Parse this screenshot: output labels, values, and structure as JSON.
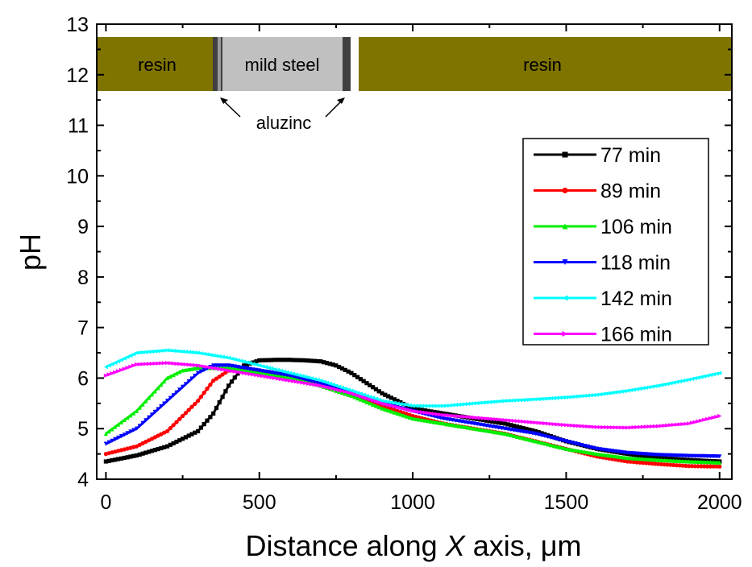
{
  "chart_data": {
    "type": "line",
    "xlabel_prefix": "Distance along ",
    "xlabel_var": "X",
    "xlabel_suffix": " axis, μm",
    "ylabel": "pH",
    "xlim": [
      -30,
      2040
    ],
    "ylim": [
      4,
      13
    ],
    "xticks": [
      0,
      500,
      1000,
      1500,
      2000
    ],
    "yticks": [
      4,
      5,
      6,
      7,
      8,
      9,
      10,
      11,
      12,
      13
    ],
    "legend_position": "right",
    "series": [
      {
        "name": "77 min",
        "color": "#000000",
        "marker": "square",
        "x": [
          0,
          100,
          200,
          300,
          350,
          400,
          450,
          500,
          550,
          600,
          650,
          700,
          750,
          800,
          850,
          900,
          1000,
          1100,
          1200,
          1300,
          1400,
          1500,
          1600,
          1700,
          1800,
          1900,
          2000
        ],
        "y": [
          4.35,
          4.47,
          4.65,
          4.95,
          5.3,
          5.85,
          6.25,
          6.35,
          6.36,
          6.36,
          6.35,
          6.33,
          6.25,
          6.1,
          5.9,
          5.7,
          5.4,
          5.3,
          5.2,
          5.1,
          4.95,
          4.75,
          4.6,
          4.5,
          4.42,
          4.38,
          4.35
        ]
      },
      {
        "name": "89 min",
        "color": "#ff0000",
        "marker": "circle",
        "x": [
          0,
          100,
          200,
          300,
          350,
          400,
          450,
          500,
          600,
          700,
          800,
          900,
          1000,
          1100,
          1200,
          1300,
          1400,
          1500,
          1600,
          1700,
          1800,
          1900,
          2000
        ],
        "y": [
          4.5,
          4.65,
          4.95,
          5.55,
          5.95,
          6.15,
          6.17,
          6.15,
          6.0,
          5.85,
          5.65,
          5.45,
          5.25,
          5.1,
          5.0,
          4.9,
          4.75,
          4.6,
          4.45,
          4.35,
          4.3,
          4.26,
          4.25
        ]
      },
      {
        "name": "106 min",
        "color": "#00ee00",
        "marker": "triangle-up",
        "x": [
          0,
          100,
          200,
          250,
          300,
          400,
          500,
          600,
          700,
          800,
          900,
          1000,
          1100,
          1200,
          1300,
          1400,
          1500,
          1600,
          1700,
          1800,
          1900,
          2000
        ],
        "y": [
          4.9,
          5.35,
          6.0,
          6.15,
          6.2,
          6.2,
          6.1,
          6.0,
          5.85,
          5.65,
          5.4,
          5.2,
          5.1,
          5.0,
          4.9,
          4.75,
          4.6,
          4.5,
          4.42,
          4.38,
          4.35,
          4.33
        ]
      },
      {
        "name": "118 min",
        "color": "#0000ff",
        "marker": "triangle-down",
        "x": [
          0,
          100,
          200,
          300,
          350,
          400,
          500,
          600,
          700,
          800,
          900,
          1000,
          1100,
          1200,
          1300,
          1400,
          1500,
          1600,
          1700,
          1800,
          1900,
          2000
        ],
        "y": [
          4.7,
          5.0,
          5.55,
          6.1,
          6.25,
          6.25,
          6.15,
          6.05,
          5.9,
          5.7,
          5.5,
          5.35,
          5.2,
          5.1,
          5.0,
          4.9,
          4.75,
          4.6,
          4.52,
          4.48,
          4.46,
          4.45
        ]
      },
      {
        "name": "142 min",
        "color": "#00ffff",
        "marker": "triangle-left",
        "x": [
          0,
          100,
          200,
          300,
          400,
          500,
          600,
          700,
          800,
          900,
          1000,
          1100,
          1200,
          1300,
          1400,
          1500,
          1600,
          1700,
          1800,
          1900,
          2000
        ],
        "y": [
          6.22,
          6.5,
          6.55,
          6.5,
          6.4,
          6.25,
          6.1,
          5.95,
          5.75,
          5.55,
          5.45,
          5.45,
          5.5,
          5.55,
          5.58,
          5.62,
          5.67,
          5.75,
          5.85,
          5.97,
          6.1
        ]
      },
      {
        "name": "166 min",
        "color": "#ff00ff",
        "marker": "triangle-right",
        "x": [
          0,
          100,
          200,
          300,
          400,
          500,
          600,
          700,
          800,
          900,
          1000,
          1100,
          1200,
          1300,
          1400,
          1500,
          1600,
          1700,
          1800,
          1900,
          2000
        ],
        "y": [
          6.05,
          6.27,
          6.3,
          6.25,
          6.15,
          6.05,
          5.95,
          5.85,
          5.7,
          5.5,
          5.35,
          5.27,
          5.22,
          5.17,
          5.12,
          5.07,
          5.03,
          5.02,
          5.05,
          5.1,
          5.25
        ]
      }
    ],
    "inset": {
      "resin_left_label": "resin",
      "steel_label": "mild steel",
      "resin_right_label": "resin",
      "coating_label": "aluzinc",
      "resin_color": "#7f7400",
      "steel_color": "#c0c0c0",
      "coating_color": "#404040"
    }
  }
}
